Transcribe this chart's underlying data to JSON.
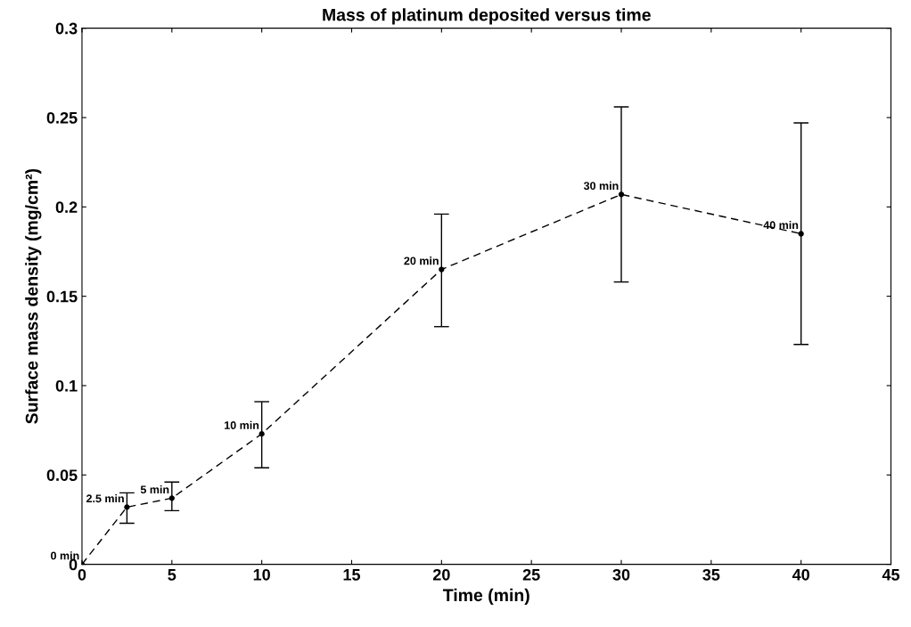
{
  "chart_data": {
    "type": "line",
    "title": "Mass of platinum deposited versus time",
    "xlabel": "Time (min)",
    "ylabel": "Surface mass density (mg/cm²)",
    "x": [
      0,
      2.5,
      5,
      10,
      20,
      30,
      40
    ],
    "series": [
      {
        "color": "#000000",
        "values": [
          0,
          0.032,
          0.037,
          0.073,
          0.165,
          0.207,
          0.185
        ],
        "errors": [
          null,
          [
            0.023,
            0.04
          ],
          [
            0.03,
            0.046
          ],
          [
            0.054,
            0.091
          ],
          [
            0.133,
            0.196
          ],
          [
            0.158,
            0.256
          ],
          [
            0.123,
            0.247
          ]
        ]
      }
    ],
    "annotations": [
      {
        "text": "0 min",
        "x": 0,
        "y": 0
      },
      {
        "text": "2.5 min",
        "x": 2.5,
        "y": 0.032
      },
      {
        "text": "5 min",
        "x": 5,
        "y": 0.037
      },
      {
        "text": "10 min",
        "x": 10,
        "y": 0.073
      },
      {
        "text": "20 min",
        "x": 20,
        "y": 0.165
      },
      {
        "text": "30 min",
        "x": 30,
        "y": 0.207
      },
      {
        "text": "40 min",
        "x": 40,
        "y": 0.185
      }
    ],
    "xlim": [
      0,
      45
    ],
    "xticks": [
      0,
      5,
      10,
      15,
      20,
      25,
      30,
      35,
      40,
      45
    ],
    "ylim": [
      0,
      0.3
    ],
    "yticks": [
      0,
      0.05,
      0.1,
      0.15,
      0.2,
      0.25,
      0.3
    ],
    "marker": "circle",
    "line_style": "dashed",
    "grid": false,
    "legend": false
  }
}
